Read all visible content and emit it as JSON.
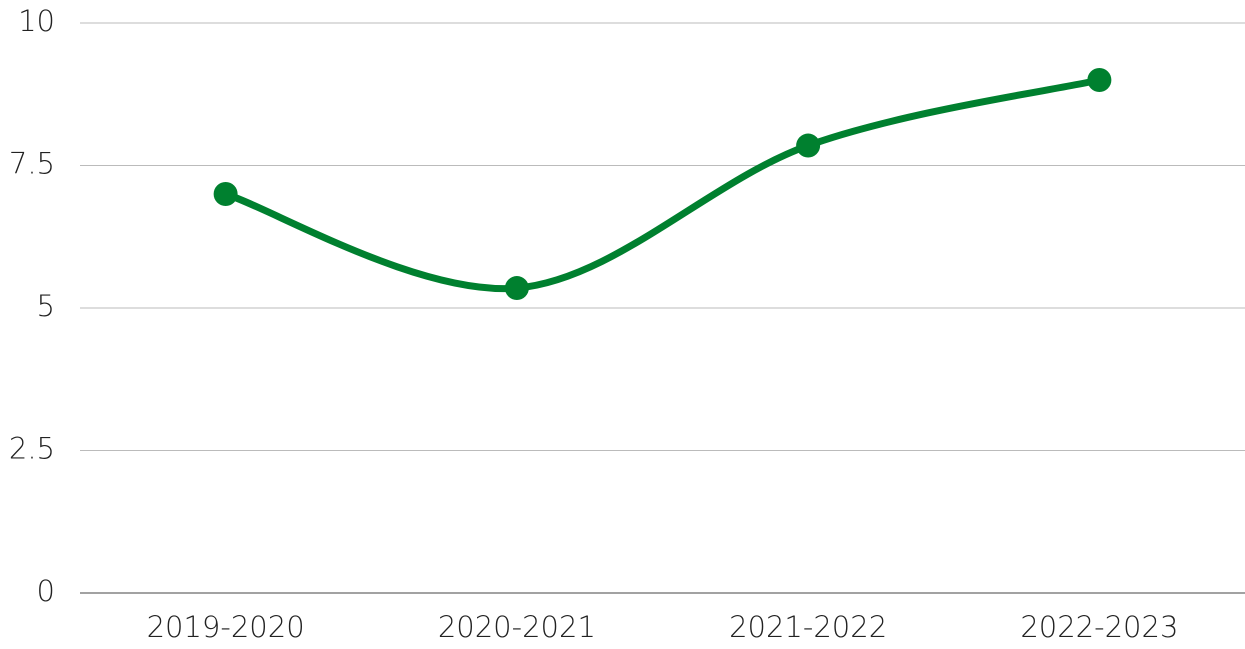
{
  "chart_data": {
    "type": "line",
    "categories": [
      "2019-2020",
      "2020-2021",
      "2021-2022",
      "2022-2023"
    ],
    "values": [
      7.0,
      5.35,
      7.85,
      9.0
    ],
    "color": "#00802f",
    "smooth": true,
    "ylim": [
      0,
      10
    ],
    "yticks": [
      0,
      2.5,
      5,
      7.5,
      10
    ],
    "grid": true
  }
}
